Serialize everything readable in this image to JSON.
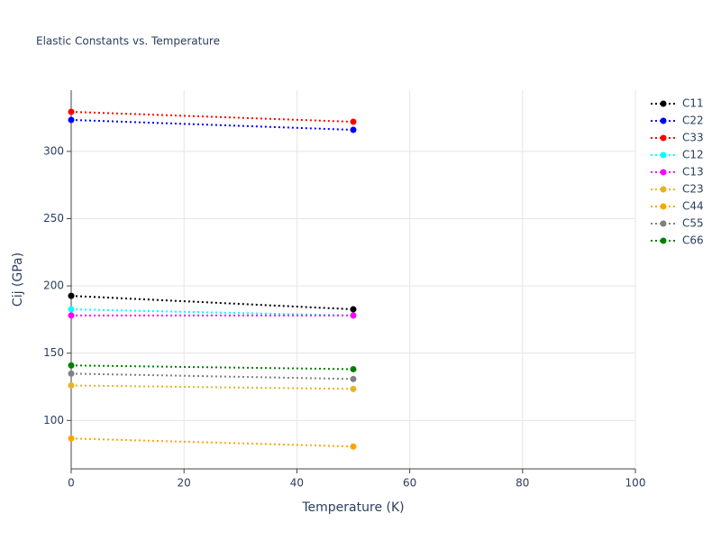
{
  "chart_data": {
    "type": "line",
    "title": "Elastic Constants vs. Temperature",
    "x_label": "Temperature (K)",
    "y_label": "Cij (GPa)",
    "x": [
      0,
      50
    ],
    "series": [
      {
        "name": "C11",
        "color": "#000000",
        "values": [
          192.6,
          182.6
        ]
      },
      {
        "name": "C22",
        "color": "#0000ff",
        "values": [
          323.4,
          316
        ]
      },
      {
        "name": "C33",
        "color": "#ff0000",
        "values": [
          329.4,
          322
        ]
      },
      {
        "name": "C12",
        "color": "#00ffff",
        "values": [
          182.6,
          178
        ]
      },
      {
        "name": "C13",
        "color": "#ff00ff",
        "values": [
          178,
          178
        ]
      },
      {
        "name": "C23",
        "color": "#e6b422",
        "values": [
          126,
          123.4
        ]
      },
      {
        "name": "C44",
        "color": "#ffa500",
        "values": [
          86.6,
          80.6
        ]
      },
      {
        "name": "C55",
        "color": "#808080",
        "values": [
          134.8,
          130.8
        ]
      },
      {
        "name": "C66",
        "color": "#008000",
        "values": [
          140.9,
          138.1
        ]
      }
    ],
    "xlim": [
      0,
      100
    ],
    "xticks": [
      0,
      20,
      40,
      60,
      80,
      100
    ],
    "ylim": [
      64,
      345.5
    ],
    "yticks": [
      100,
      150,
      200,
      250,
      300
    ],
    "grid": true,
    "legend": "right"
  }
}
